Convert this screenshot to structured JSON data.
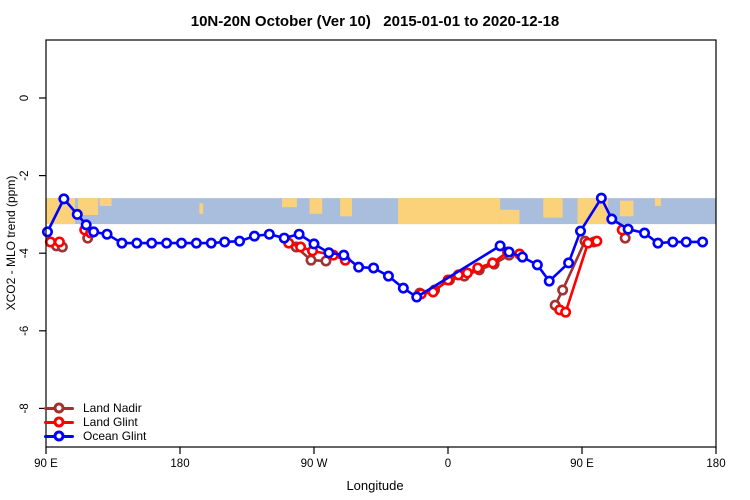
{
  "chart_data": {
    "type": "line",
    "title": "10N-20N October (Ver 10)   2015-01-01 to 2020-12-18",
    "xlabel": "Longitude",
    "ylabel": "XCO2 - MLO trend (ppm)",
    "grid": false,
    "legend_position": "bottom-left",
    "x_axis": {
      "unit": "degrees eastward from 90E",
      "range_deg": [
        0,
        450
      ],
      "ticks": [
        {
          "deg": 0,
          "label": "90 E"
        },
        {
          "deg": 90,
          "label": "180"
        },
        {
          "deg": 180,
          "label": "90 W"
        },
        {
          "deg": 270,
          "label": "0"
        },
        {
          "deg": 360,
          "label": "90 E"
        },
        {
          "deg": 450,
          "label": "180"
        }
      ]
    },
    "y_axis": {
      "range": [
        1.5,
        -9.0
      ],
      "ticks": [
        {
          "v": 0,
          "label": "0"
        },
        {
          "v": -2,
          "label": "-2"
        },
        {
          "v": -4,
          "label": "-4"
        },
        {
          "v": -6,
          "label": "-6"
        },
        {
          "v": -8,
          "label": "-8"
        }
      ]
    },
    "map_band": {
      "description": "world map strip drawn across plot",
      "v_top": -2.58,
      "v_bottom": -3.25,
      "ocean_color": "#a9bedd",
      "land_color": "#fbd27a",
      "land_patches": [
        {
          "d0": 0,
          "d1": 19.5,
          "t": 0,
          "b": 1
        },
        {
          "d0": 21.5,
          "d1": 35,
          "t": 0,
          "b": 0.65
        },
        {
          "d0": 36,
          "d1": 44,
          "t": 0,
          "b": 0.3
        },
        {
          "d0": 103,
          "d1": 105.5,
          "t": 0.2,
          "b": 0.6
        },
        {
          "d0": 158.5,
          "d1": 168.5,
          "t": 0,
          "b": 0.35
        },
        {
          "d0": 177,
          "d1": 185.5,
          "t": 0,
          "b": 0.6
        },
        {
          "d0": 197.5,
          "d1": 205.5,
          "t": 0,
          "b": 0.7
        },
        {
          "d0": 236.5,
          "d1": 305,
          "t": 0,
          "b": 1
        },
        {
          "d0": 305,
          "d1": 318,
          "t": 0.45,
          "b": 1
        },
        {
          "d0": 334,
          "d1": 347,
          "t": 0,
          "b": 0.75
        },
        {
          "d0": 357,
          "d1": 377.5,
          "t": 0,
          "b": 1
        },
        {
          "d0": 385.5,
          "d1": 394.5,
          "t": 0.1,
          "b": 0.7
        },
        {
          "d0": 409,
          "d1": 413,
          "t": 0,
          "b": 0.3
        }
      ]
    },
    "series": [
      {
        "name": "Land Nadir",
        "color": "#a03232",
        "segments": [
          [
            [
              7,
              -3.81
            ],
            [
              11,
              -3.84
            ]
          ],
          [
            [
              28,
              -3.61
            ]
          ],
          [
            [
              168,
              -3.84
            ],
            [
              178,
              -4.18
            ],
            [
              188,
              -4.2
            ]
          ],
          [
            [
              251,
              -5.03
            ],
            [
              261,
              -4.95
            ],
            [
              271,
              -4.69
            ],
            [
              281,
              -4.59
            ],
            [
              291,
              -4.43
            ],
            [
              301,
              -4.28
            ],
            [
              311,
              -4.05
            ]
          ],
          [
            [
              342,
              -5.34
            ],
            [
              347,
              -4.95
            ],
            [
              362,
              -3.69
            ],
            [
              368,
              -3.71
            ]
          ],
          [
            [
              389,
              -3.61
            ]
          ]
        ]
      },
      {
        "name": "Land Glint",
        "color": "#ff0000",
        "segments": [
          [
            [
              3,
              -3.71
            ],
            [
              9,
              -3.71
            ]
          ],
          [
            [
              26,
              -3.4
            ],
            [
              30,
              -3.48
            ]
          ],
          [
            [
              163,
              -3.74
            ],
            [
              171,
              -3.84
            ],
            [
              179,
              -3.94
            ],
            [
              193,
              -4.05
            ],
            [
              201,
              -4.18
            ]
          ],
          [
            [
              252,
              -5.05
            ],
            [
              260,
              -5.0
            ],
            [
              270,
              -4.69
            ],
            [
              277,
              -4.56
            ],
            [
              283,
              -4.51
            ],
            [
              290,
              -4.38
            ],
            [
              300,
              -4.25
            ],
            [
              310,
              -3.97
            ],
            [
              318,
              -4.02
            ]
          ],
          [
            [
              345,
              -5.46
            ],
            [
              349,
              -5.52
            ],
            [
              364,
              -3.74
            ],
            [
              370,
              -3.69
            ]
          ],
          [
            [
              387,
              -3.4
            ]
          ]
        ]
      },
      {
        "name": "Ocean Glint",
        "color": "#0000ff",
        "segments": [
          [
            [
              1,
              -3.45
            ],
            [
              12,
              -2.6
            ],
            [
              21,
              -3.0
            ],
            [
              27,
              -3.27
            ],
            [
              32,
              -3.45
            ],
            [
              41,
              -3.51
            ],
            [
              51,
              -3.74
            ],
            [
              61,
              -3.74
            ],
            [
              71,
              -3.74
            ],
            [
              81,
              -3.74
            ],
            [
              91,
              -3.74
            ],
            [
              101,
              -3.74
            ],
            [
              111,
              -3.74
            ],
            [
              120,
              -3.71
            ],
            [
              130,
              -3.69
            ],
            [
              140,
              -3.56
            ],
            [
              150,
              -3.51
            ],
            [
              160,
              -3.61
            ],
            [
              170,
              -3.51
            ],
            [
              180,
              -3.76
            ],
            [
              190,
              -3.99
            ],
            [
              200,
              -4.05
            ],
            [
              210,
              -4.36
            ],
            [
              220,
              -4.38
            ],
            [
              230,
              -4.59
            ],
            [
              240,
              -4.9
            ],
            [
              249,
              -5.13
            ],
            [
              305,
              -3.81
            ],
            [
              311,
              -3.97
            ],
            [
              320,
              -4.1
            ],
            [
              330,
              -4.3
            ],
            [
              338,
              -4.72
            ],
            [
              351,
              -4.25
            ],
            [
              359,
              -3.43
            ],
            [
              373,
              -2.58
            ],
            [
              380,
              -3.12
            ],
            [
              391,
              -3.38
            ],
            [
              402,
              -3.48
            ],
            [
              411,
              -3.74
            ],
            [
              421,
              -3.71
            ],
            [
              430,
              -3.71
            ],
            [
              441,
              -3.71
            ]
          ]
        ]
      }
    ]
  }
}
